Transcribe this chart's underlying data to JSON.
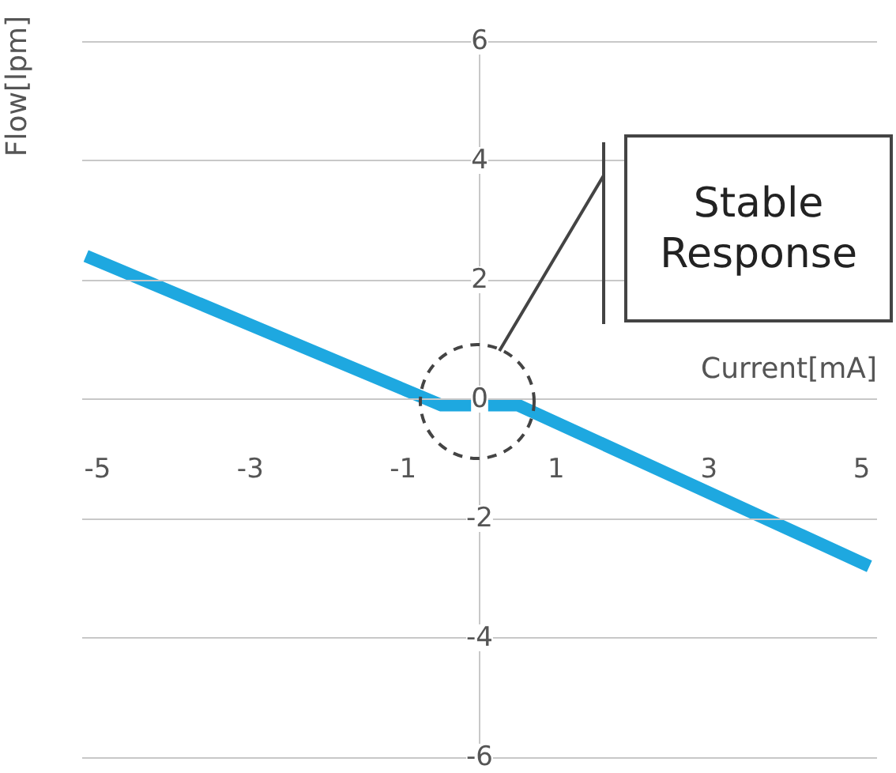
{
  "chart_data": {
    "type": "line",
    "xlabel": "Current[mA]",
    "ylabel": "Flow[lpm]",
    "x": [
      -5.15,
      -0.5,
      0.5,
      5.1
    ],
    "series": [
      {
        "color": "#1ea8e0",
        "values": [
          2.4,
          -0.1,
          -0.1,
          -2.8
        ]
      }
    ],
    "xlim": [
      -5.2,
      5.2
    ],
    "xticks": [
      -5,
      -3,
      -1,
      1,
      3,
      5
    ],
    "ylim": [
      -6,
      6
    ],
    "yticks": [
      -6,
      -4,
      -2,
      0,
      2,
      4,
      6
    ],
    "grid": "y",
    "marker": "none",
    "line_style": "solid",
    "annotations": [
      "Stable Response"
    ]
  }
}
